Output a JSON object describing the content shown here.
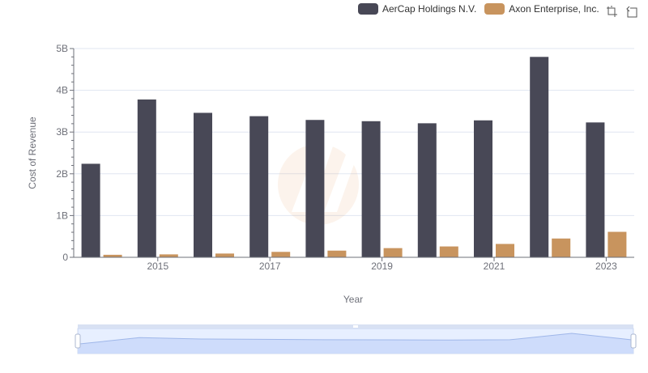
{
  "colors": {
    "aercap": "#484856",
    "axon": "#c8945e",
    "zoom_fill": "#dde6fb",
    "zoom_line": "#a6b9e4"
  },
  "toolbar": {
    "zoom_icon": "zoom-icon",
    "restore_icon": "restore-icon"
  },
  "chart_data": {
    "type": "bar",
    "title": "",
    "xlabel": "Year",
    "ylabel": "Cost of Revenue",
    "categories": [
      "2014",
      "2015",
      "2016",
      "2017",
      "2018",
      "2019",
      "2020",
      "2021",
      "2022",
      "2023"
    ],
    "x_tick_labels": [
      "2015",
      "2017",
      "2019",
      "2021",
      "2023"
    ],
    "y_ticks": [
      0,
      1000000000,
      2000000000,
      3000000000,
      4000000000,
      5000000000
    ],
    "y_tick_labels": [
      "0",
      "1B",
      "2B",
      "3B",
      "4B",
      "5B"
    ],
    "ylim": [
      0,
      5000000000
    ],
    "legend_position": "top-right",
    "series": [
      {
        "name": "AerCap Holdings N.V.",
        "values": [
          2240000000,
          3780000000,
          3460000000,
          3380000000,
          3290000000,
          3260000000,
          3210000000,
          3280000000,
          4800000000,
          3230000000
        ]
      },
      {
        "name": "Axon Enterprise, Inc.",
        "values": [
          60000000,
          70000000,
          90000000,
          130000000,
          160000000,
          220000000,
          260000000,
          320000000,
          450000000,
          610000000
        ]
      }
    ]
  }
}
